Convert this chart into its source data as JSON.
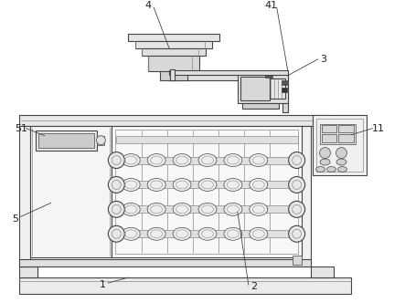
{
  "bg": "#ffffff",
  "lc": "#888888",
  "dc": "#444444",
  "fc_light": "#f0f0f0",
  "fc_mid": "#d8d8d8",
  "fc_dark": "#c0c0c0",
  "label_fs": 8,
  "label_color": "#222222"
}
